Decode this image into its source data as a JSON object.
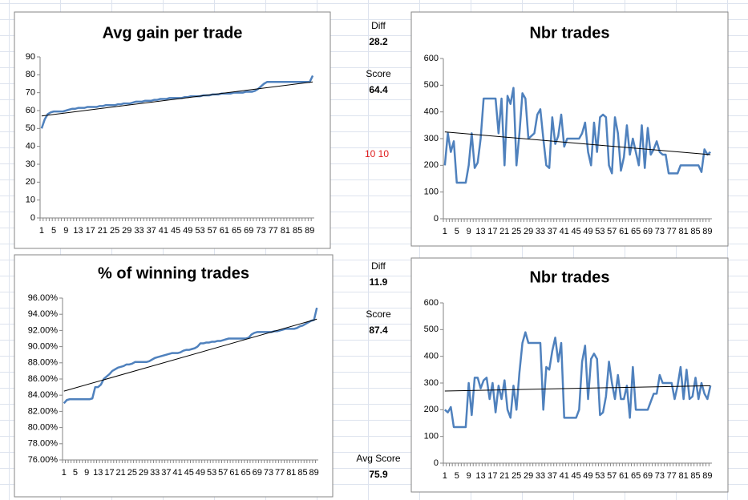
{
  "cells": {
    "diff1_label": "Diff",
    "diff1": "28.2",
    "score1_label": "Score",
    "score1": "64.4",
    "note": "10 10",
    "diff2_label": "Diff",
    "diff2": "11.9",
    "score2_label": "Score",
    "score2": "87.4",
    "avg_label": "Avg Score",
    "avg": "75.9"
  },
  "chart_data": [
    {
      "type": "line",
      "title": "Avg gain per trade",
      "categories": [
        1,
        null,
        null,
        null,
        5,
        null,
        null,
        null,
        9,
        null,
        null,
        null,
        13,
        null,
        null,
        null,
        17,
        null,
        null,
        null,
        21,
        null,
        null,
        null,
        25,
        null,
        null,
        null,
        29,
        null,
        null,
        null,
        33,
        null,
        null,
        null,
        37,
        null,
        null,
        null,
        41,
        null,
        null,
        null,
        45,
        null,
        null,
        null,
        49,
        null,
        null,
        null,
        53,
        null,
        null,
        null,
        57,
        null,
        null,
        null,
        61,
        null,
        null,
        null,
        65,
        null,
        null,
        null,
        69,
        null,
        null,
        null,
        73,
        null,
        null,
        null,
        77,
        null,
        null,
        null,
        81,
        null,
        null,
        null,
        85,
        null,
        null,
        null,
        89,
        null
      ],
      "values": [
        50,
        55,
        58,
        59,
        59.5,
        59.5,
        59.5,
        59.5,
        60,
        60.5,
        61,
        61,
        61.5,
        61.5,
        61.5,
        62,
        62,
        62,
        62,
        62.5,
        62.5,
        63,
        63,
        63,
        63,
        63.5,
        63.5,
        64,
        64,
        64,
        64.5,
        65,
        65,
        65,
        65.5,
        65.5,
        65.5,
        66,
        66,
        66.5,
        66.5,
        66.5,
        67,
        67,
        67,
        67,
        67,
        67.5,
        67.5,
        68,
        68,
        68,
        68,
        68.5,
        68.5,
        68.5,
        69,
        69,
        69,
        69.5,
        69.5,
        69.5,
        69.5,
        70,
        70,
        70,
        70,
        70.5,
        70.5,
        70.5,
        71,
        72,
        73.5,
        75,
        76,
        76,
        76,
        76,
        76,
        76,
        76,
        76,
        76,
        76,
        76,
        76,
        76,
        76,
        76,
        79.5
      ],
      "color": "#4f81bd",
      "trendline": [
        57,
        76
      ],
      "trend_color": "#000000",
      "ylim": [
        0,
        90
      ],
      "yticks": [
        0,
        10,
        20,
        30,
        40,
        50,
        60,
        70,
        80,
        90
      ]
    },
    {
      "type": "line",
      "title": "Nbr trades",
      "categories": [
        1,
        null,
        null,
        null,
        5,
        null,
        null,
        null,
        9,
        null,
        null,
        null,
        13,
        null,
        null,
        null,
        17,
        null,
        null,
        null,
        21,
        null,
        null,
        null,
        25,
        null,
        null,
        null,
        29,
        null,
        null,
        null,
        33,
        null,
        null,
        null,
        37,
        null,
        null,
        null,
        41,
        null,
        null,
        null,
        45,
        null,
        null,
        null,
        49,
        null,
        null,
        null,
        53,
        null,
        null,
        null,
        57,
        null,
        null,
        null,
        61,
        null,
        null,
        null,
        65,
        null,
        null,
        null,
        69,
        null,
        null,
        null,
        73,
        null,
        null,
        null,
        77,
        null,
        null,
        null,
        81,
        null,
        null,
        null,
        85,
        null,
        null,
        null,
        89,
        null
      ],
      "values": [
        200,
        320,
        250,
        290,
        135,
        135,
        135,
        135,
        200,
        320,
        190,
        210,
        300,
        450,
        450,
        450,
        450,
        450,
        320,
        450,
        200,
        460,
        430,
        490,
        200,
        320,
        470,
        450,
        300,
        310,
        320,
        390,
        410,
        300,
        200,
        190,
        380,
        280,
        310,
        390,
        270,
        300,
        300,
        300,
        300,
        300,
        320,
        360,
        250,
        200,
        360,
        250,
        380,
        390,
        380,
        200,
        170,
        380,
        320,
        180,
        230,
        350,
        240,
        300,
        250,
        200,
        350,
        190,
        340,
        240,
        260,
        290,
        250,
        240,
        240,
        170,
        170,
        170,
        170,
        200,
        200,
        200,
        200,
        200,
        200,
        200,
        175,
        260,
        240,
        250
      ],
      "color": "#4f81bd",
      "trendline": [
        325,
        240
      ],
      "trend_color": "#000000",
      "ylim": [
        0,
        600
      ],
      "yticks": [
        0,
        100,
        200,
        300,
        400,
        500,
        600
      ]
    },
    {
      "type": "line",
      "title": "% of winning trades",
      "categories": [
        1,
        null,
        null,
        null,
        5,
        null,
        null,
        null,
        9,
        null,
        null,
        null,
        13,
        null,
        null,
        null,
        17,
        null,
        null,
        null,
        21,
        null,
        null,
        null,
        25,
        null,
        null,
        null,
        29,
        null,
        null,
        null,
        33,
        null,
        null,
        null,
        37,
        null,
        null,
        null,
        41,
        null,
        null,
        null,
        45,
        null,
        null,
        null,
        49,
        null,
        null,
        null,
        53,
        null,
        null,
        null,
        57,
        null,
        null,
        null,
        61,
        null,
        null,
        null,
        65,
        null,
        null,
        null,
        69,
        null,
        null,
        null,
        73,
        null,
        null,
        null,
        77,
        null,
        null,
        null,
        81,
        null,
        null,
        null,
        85,
        null,
        null,
        null,
        89,
        null
      ],
      "values": [
        83,
        83.4,
        83.5,
        83.5,
        83.5,
        83.5,
        83.5,
        83.5,
        83.5,
        83.5,
        83.6,
        85,
        85,
        85.3,
        86,
        86.3,
        86.6,
        87,
        87.2,
        87.4,
        87.5,
        87.6,
        87.8,
        87.8,
        87.9,
        88.1,
        88.1,
        88.1,
        88.1,
        88.1,
        88.2,
        88.4,
        88.6,
        88.7,
        88.8,
        88.9,
        89,
        89.1,
        89.2,
        89.2,
        89.2,
        89.3,
        89.5,
        89.6,
        89.6,
        89.7,
        89.8,
        90,
        90.4,
        90.4,
        90.5,
        90.5,
        90.6,
        90.6,
        90.7,
        90.7,
        90.8,
        90.9,
        91,
        91,
        91,
        91,
        91,
        91,
        91,
        91.1,
        91.5,
        91.7,
        91.8,
        91.8,
        91.8,
        91.8,
        91.8,
        91.8,
        91.9,
        91.9,
        92,
        92.1,
        92.2,
        92.2,
        92.2,
        92.2,
        92.3,
        92.5,
        92.6,
        92.8,
        93,
        93.2,
        93.3,
        94.8
      ],
      "color": "#4f81bd",
      "trendline": [
        84.5,
        93.4
      ],
      "trend_color": "#000000",
      "ylim": [
        76,
        96
      ],
      "yticks": [
        {
          "value": 76,
          "label": "76.00%"
        },
        {
          "value": 78,
          "label": "78.00%"
        },
        {
          "value": 80,
          "label": "80.00%"
        },
        {
          "value": 82,
          "label": "82.00%"
        },
        {
          "value": 84,
          "label": "84.00%"
        },
        {
          "value": 86,
          "label": "86.00%"
        },
        {
          "value": 88,
          "label": "88.00%"
        },
        {
          "value": 90,
          "label": "90.00%"
        },
        {
          "value": 92,
          "label": "92.00%"
        },
        {
          "value": 94,
          "label": "94.00%"
        },
        {
          "value": 96,
          "label": "96.00%"
        }
      ]
    },
    {
      "type": "line",
      "title": "Nbr trades",
      "categories": [
        1,
        null,
        null,
        null,
        5,
        null,
        null,
        null,
        9,
        null,
        null,
        null,
        13,
        null,
        null,
        null,
        17,
        null,
        null,
        null,
        21,
        null,
        null,
        null,
        25,
        null,
        null,
        null,
        29,
        null,
        null,
        null,
        33,
        null,
        null,
        null,
        37,
        null,
        null,
        null,
        41,
        null,
        null,
        null,
        45,
        null,
        null,
        null,
        49,
        null,
        null,
        null,
        53,
        null,
        null,
        null,
        57,
        null,
        null,
        null,
        61,
        null,
        null,
        null,
        65,
        null,
        null,
        null,
        69,
        null,
        null,
        null,
        73,
        null,
        null,
        null,
        77,
        null,
        null,
        null,
        81,
        null,
        null,
        null,
        85,
        null,
        null,
        null,
        89,
        null
      ],
      "values": [
        200,
        190,
        210,
        135,
        135,
        135,
        135,
        135,
        300,
        180,
        320,
        320,
        280,
        310,
        320,
        240,
        300,
        190,
        290,
        240,
        310,
        200,
        170,
        290,
        200,
        340,
        450,
        490,
        450,
        450,
        450,
        450,
        450,
        200,
        360,
        350,
        420,
        470,
        380,
        450,
        170,
        170,
        170,
        170,
        170,
        200,
        380,
        440,
        240,
        390,
        410,
        390,
        180,
        190,
        250,
        380,
        300,
        240,
        330,
        240,
        240,
        290,
        170,
        360,
        200,
        200,
        200,
        200,
        200,
        230,
        260,
        260,
        330,
        300,
        300,
        300,
        300,
        240,
        290,
        360,
        240,
        350,
        240,
        250,
        320,
        240,
        300,
        260,
        240,
        290
      ],
      "color": "#4f81bd",
      "trendline": [
        270,
        290
      ],
      "trend_color": "#000000",
      "ylim": [
        0,
        600
      ],
      "yticks": [
        0,
        100,
        200,
        300,
        400,
        500,
        600
      ]
    }
  ]
}
